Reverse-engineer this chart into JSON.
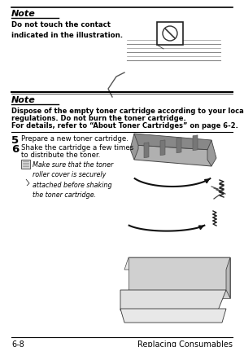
{
  "bg_color": "#ffffff",
  "page_width": 3.0,
  "page_height": 4.27,
  "dpi": 100,
  "note1_heading": "Note",
  "note1_text": "Do not touch the contact\nindicated in the illustration.",
  "note2_heading": "Note",
  "note2_text_line1": "Dispose of the empty toner cartridge according to your local",
  "note2_text_line2": "regulations. Do not burn the toner cartridge.",
  "note2_text_line3": "For details, refer to “About Toner Cartridges” on page 6-2.",
  "step5_num": "5",
  "step5_text": "Prepare a new toner cartridge.",
  "step6_num": "6",
  "step6_text_line1": "Shake the cartridge a few times",
  "step6_text_line2": "to distribute the toner.",
  "step6_note": "Make sure that the toner\nroller cover is securely\nattached before shaking\nthe toner cartridge.",
  "footer_left": "6-8",
  "footer_right": "Replacing Consumables",
  "text_color": "#000000",
  "gray1": "#888888",
  "gray2": "#aaaaaa",
  "gray3": "#cccccc",
  "gray4": "#555555",
  "gray5": "#333333",
  "gray6": "#666666",
  "gray7": "#999999"
}
